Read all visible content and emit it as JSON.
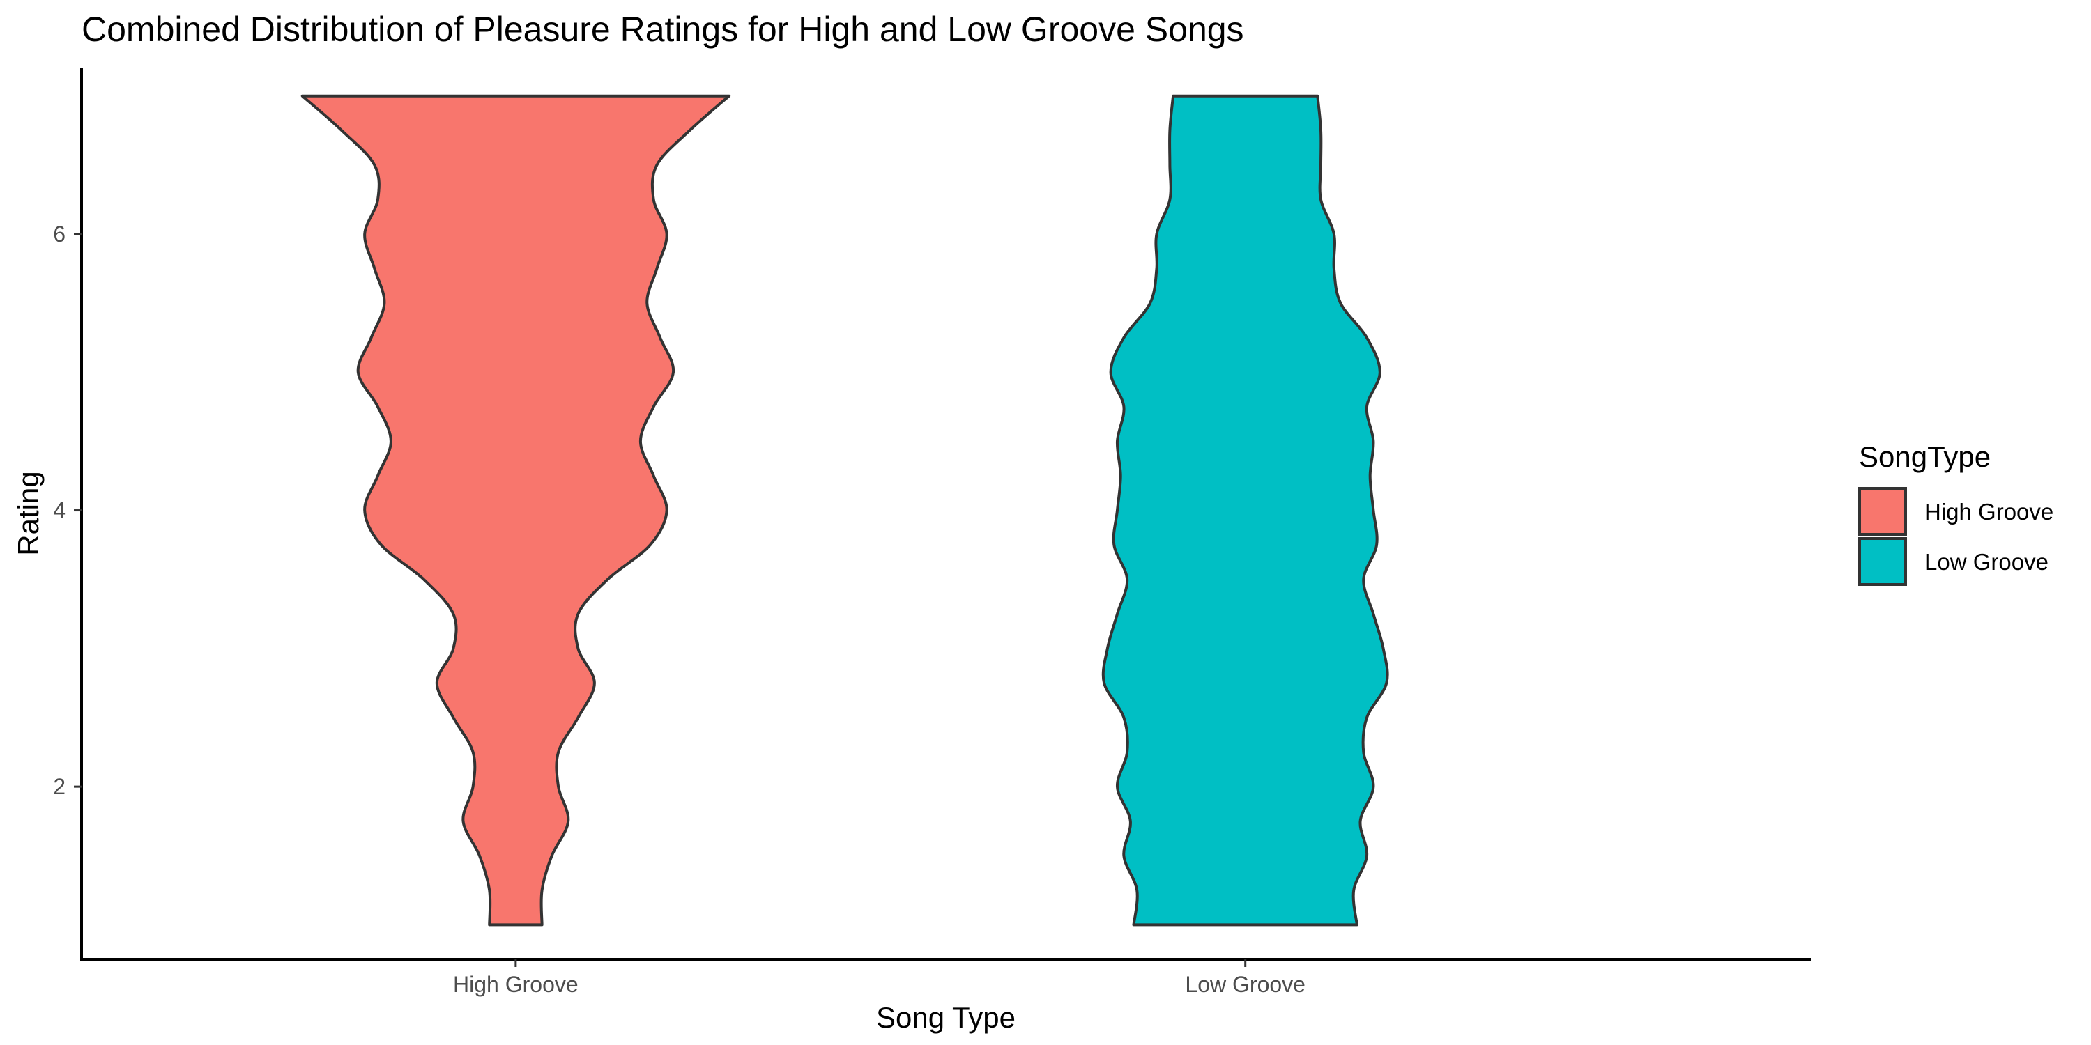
{
  "chart_data": {
    "type": "violin",
    "title": "Combined Distribution of Pleasure Ratings for High and Low Groove Songs",
    "xlabel": "Song Type",
    "ylabel": "Rating",
    "categories": [
      "High Groove",
      "Low Groove"
    ],
    "ylim": [
      0.75,
      7.2
    ],
    "yticks": [
      2,
      4,
      6
    ],
    "grid": false,
    "legend": {
      "title": "SongType",
      "position": "right",
      "entries": [
        "High Groove",
        "Low Groove"
      ]
    },
    "series": [
      {
        "name": "High Groove",
        "color": "#F8766D",
        "min": 1,
        "max": 7,
        "density": [
          [
            1.0,
            0.08
          ],
          [
            1.25,
            0.08
          ],
          [
            1.5,
            0.11
          ],
          [
            1.75,
            0.16
          ],
          [
            2.0,
            0.13
          ],
          [
            2.25,
            0.13
          ],
          [
            2.5,
            0.19
          ],
          [
            2.75,
            0.24
          ],
          [
            3.0,
            0.19
          ],
          [
            3.25,
            0.19
          ],
          [
            3.5,
            0.28
          ],
          [
            3.75,
            0.41
          ],
          [
            4.0,
            0.46
          ],
          [
            4.25,
            0.42
          ],
          [
            4.5,
            0.38
          ],
          [
            4.75,
            0.42
          ],
          [
            5.0,
            0.48
          ],
          [
            5.25,
            0.44
          ],
          [
            5.5,
            0.4
          ],
          [
            5.75,
            0.43
          ],
          [
            6.0,
            0.46
          ],
          [
            6.25,
            0.42
          ],
          [
            6.5,
            0.43
          ],
          [
            6.75,
            0.53
          ],
          [
            7.0,
            0.65
          ]
        ]
      },
      {
        "name": "Low Groove",
        "color": "#00BFC4",
        "min": 1,
        "max": 7,
        "density": [
          [
            1.0,
            0.34
          ],
          [
            1.25,
            0.33
          ],
          [
            1.5,
            0.37
          ],
          [
            1.75,
            0.35
          ],
          [
            2.0,
            0.39
          ],
          [
            2.25,
            0.36
          ],
          [
            2.5,
            0.37
          ],
          [
            2.75,
            0.43
          ],
          [
            3.0,
            0.42
          ],
          [
            3.25,
            0.39
          ],
          [
            3.5,
            0.36
          ],
          [
            3.75,
            0.4
          ],
          [
            4.0,
            0.39
          ],
          [
            4.25,
            0.38
          ],
          [
            4.5,
            0.39
          ],
          [
            4.75,
            0.37
          ],
          [
            5.0,
            0.41
          ],
          [
            5.25,
            0.37
          ],
          [
            5.5,
            0.29
          ],
          [
            5.75,
            0.27
          ],
          [
            6.0,
            0.27
          ],
          [
            6.25,
            0.23
          ],
          [
            6.5,
            0.23
          ],
          [
            6.75,
            0.23
          ],
          [
            7.0,
            0.22
          ]
        ]
      }
    ]
  }
}
